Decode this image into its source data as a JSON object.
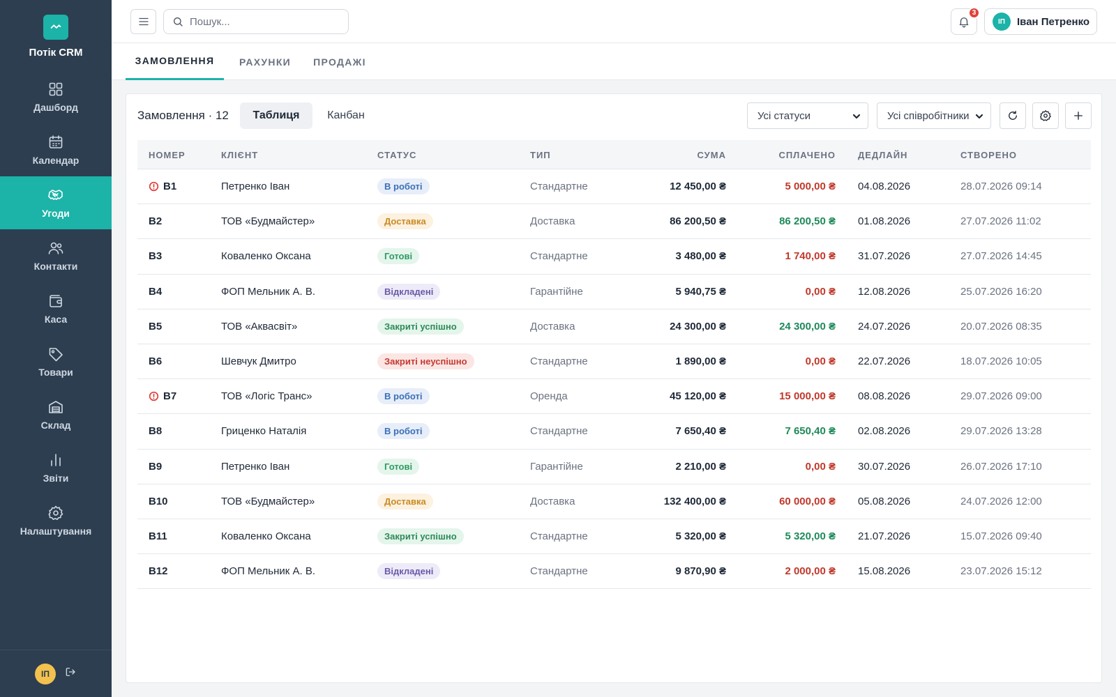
{
  "app": {
    "brand_name": "Потік CRM",
    "accent_color": "#1cb3a8",
    "sidebar_color": "#2c3e50"
  },
  "sidebar": {
    "items": [
      {
        "label": "Дашборд",
        "icon": "dashboard-icon"
      },
      {
        "label": "Календар",
        "icon": "calendar-icon"
      },
      {
        "label": "Угоди",
        "icon": "handshake-icon",
        "active": true
      },
      {
        "label": "Контакти",
        "icon": "contacts-icon"
      },
      {
        "label": "Каса",
        "icon": "wallet-icon"
      },
      {
        "label": "Товари",
        "icon": "tag-icon"
      },
      {
        "label": "Склад",
        "icon": "warehouse-icon"
      },
      {
        "label": "Звіти",
        "icon": "bar-chart-icon"
      },
      {
        "label": "Налаштування",
        "icon": "gear-icon"
      }
    ],
    "footer_user_initials": "ІП"
  },
  "topbar": {
    "search_placeholder": "Пошук...",
    "notifications_count": "3",
    "user_initials": "ІП",
    "user_name": "Іван Петренко"
  },
  "tabs": [
    {
      "label": "ЗАМОВЛЕННЯ",
      "active": true
    },
    {
      "label": "РАХУНКИ"
    },
    {
      "label": "ПРОДАЖІ"
    }
  ],
  "orders": {
    "title": "Замовлення · 12",
    "view_table": "Таблиця",
    "view_kanban": "Канбан",
    "filter_status": "Усі статуси",
    "filter_staff": "Усі співробітники",
    "columns": {
      "number": "НОМЕР",
      "client": "КЛІЄНТ",
      "status": "СТАТУС",
      "type": "ТИП",
      "sum": "СУМА",
      "paid": "СПЛАЧЕНО",
      "deadline": "ДЕДЛАЙН",
      "created": "СТВОРЕНО"
    },
    "status_styles": {
      "В роботі": {
        "bg": "#e7eef9",
        "color": "#3b6fb6"
      },
      "Доставка": {
        "bg": "#fdf1e0",
        "color": "#c98a22"
      },
      "Готові": {
        "bg": "#e4f5ec",
        "color": "#2e9a62"
      },
      "Відкладені": {
        "bg": "#eeebf8",
        "color": "#6a5aa8"
      },
      "Закриті успішно": {
        "bg": "#e4f5ec",
        "color": "#2e8a58"
      },
      "Закриті неуспішно": {
        "bg": "#fbe6e4",
        "color": "#c43a31"
      }
    },
    "rows": [
      {
        "number": "В1",
        "alert": true,
        "client": "Петренко Іван",
        "status": "В роботі",
        "type": "Стандартне",
        "sum": "12 450,00 ₴",
        "paid": "5 000,00 ₴",
        "paid_state": "red",
        "deadline": "04.08.2026",
        "created": "28.07.2026 09:14"
      },
      {
        "number": "В2",
        "alert": false,
        "client": "ТОВ «Будмайстер»",
        "status": "Доставка",
        "type": "Доставка",
        "sum": "86 200,50 ₴",
        "paid": "86 200,50 ₴",
        "paid_state": "green",
        "deadline": "01.08.2026",
        "created": "27.07.2026 11:02"
      },
      {
        "number": "В3",
        "alert": false,
        "client": "Коваленко Оксана",
        "status": "Готові",
        "type": "Стандартне",
        "sum": "3 480,00 ₴",
        "paid": "1 740,00 ₴",
        "paid_state": "red",
        "deadline": "31.07.2026",
        "created": "27.07.2026 14:45"
      },
      {
        "number": "В4",
        "alert": false,
        "client": "ФОП Мельник А. В.",
        "status": "Відкладені",
        "type": "Гарантійне",
        "sum": "5 940,75 ₴",
        "paid": "0,00 ₴",
        "paid_state": "red",
        "deadline": "12.08.2026",
        "created": "25.07.2026 16:20"
      },
      {
        "number": "В5",
        "alert": false,
        "client": "ТОВ «Аквасвіт»",
        "status": "Закриті успішно",
        "type": "Доставка",
        "sum": "24 300,00 ₴",
        "paid": "24 300,00 ₴",
        "paid_state": "green",
        "deadline": "24.07.2026",
        "created": "20.07.2026 08:35"
      },
      {
        "number": "В6",
        "alert": false,
        "client": "Шевчук Дмитро",
        "status": "Закриті неуспішно",
        "type": "Стандартне",
        "sum": "1 890,00 ₴",
        "paid": "0,00 ₴",
        "paid_state": "red",
        "deadline": "22.07.2026",
        "created": "18.07.2026 10:05"
      },
      {
        "number": "В7",
        "alert": true,
        "client": "ТОВ «Логіс Транс»",
        "status": "В роботі",
        "type": "Оренда",
        "sum": "45 120,00 ₴",
        "paid": "15 000,00 ₴",
        "paid_state": "red",
        "deadline": "08.08.2026",
        "created": "29.07.2026 09:00"
      },
      {
        "number": "В8",
        "alert": false,
        "client": "Гриценко Наталія",
        "status": "В роботі",
        "type": "Стандартне",
        "sum": "7 650,40 ₴",
        "paid": "7 650,40 ₴",
        "paid_state": "green",
        "deadline": "02.08.2026",
        "created": "29.07.2026 13:28"
      },
      {
        "number": "В9",
        "alert": false,
        "client": "Петренко Іван",
        "status": "Готові",
        "type": "Гарантійне",
        "sum": "2 210,00 ₴",
        "paid": "0,00 ₴",
        "paid_state": "red",
        "deadline": "30.07.2026",
        "created": "26.07.2026 17:10"
      },
      {
        "number": "В10",
        "alert": false,
        "client": "ТОВ «Будмайстер»",
        "status": "Доставка",
        "type": "Доставка",
        "sum": "132 400,00 ₴",
        "paid": "60 000,00 ₴",
        "paid_state": "red",
        "deadline": "05.08.2026",
        "created": "24.07.2026 12:00"
      },
      {
        "number": "В11",
        "alert": false,
        "client": "Коваленко Оксана",
        "status": "Закриті успішно",
        "type": "Стандартне",
        "sum": "5 320,00 ₴",
        "paid": "5 320,00 ₴",
        "paid_state": "green",
        "deadline": "21.07.2026",
        "created": "15.07.2026 09:40"
      },
      {
        "number": "В12",
        "alert": false,
        "client": "ФОП Мельник А. В.",
        "status": "Відкладені",
        "type": "Стандартне",
        "sum": "9 870,90 ₴",
        "paid": "2 000,00 ₴",
        "paid_state": "red",
        "deadline": "15.08.2026",
        "created": "23.07.2026 15:12"
      }
    ]
  }
}
